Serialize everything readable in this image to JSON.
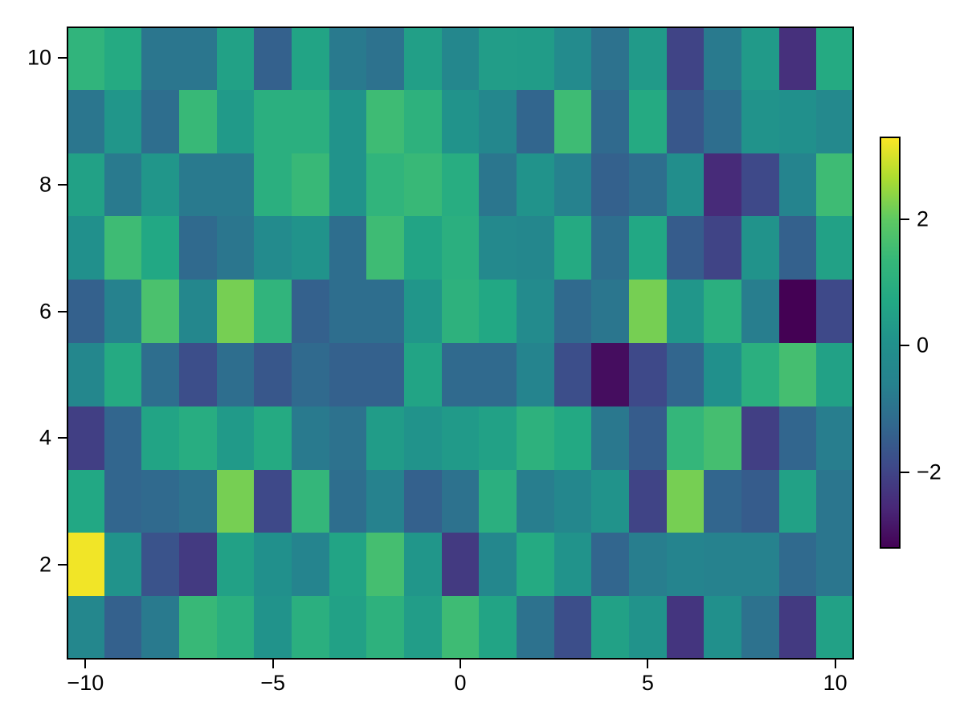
{
  "figure": {
    "background": "#ffffff",
    "frame_color": "#000000",
    "tick_color": "#000000",
    "tick_label_color": "#000000"
  },
  "chart_data": {
    "type": "heatmap",
    "title": "",
    "xlabel": "",
    "ylabel": "",
    "x": [
      -10,
      -9,
      -8,
      -7,
      -6,
      -5,
      -4,
      -3,
      -2,
      -1,
      0,
      1,
      2,
      3,
      4,
      5,
      6,
      7,
      8,
      9,
      10
    ],
    "y": [
      1,
      2,
      3,
      4,
      5,
      6,
      7,
      8,
      9,
      10
    ],
    "z_row_order": "top_to_bottom_y10_to_y1",
    "z": [
      [
        1.2,
        0.8,
        -0.9,
        -0.9,
        0.5,
        -1.4,
        0.6,
        -0.8,
        -1.0,
        0.45,
        -0.4,
        0.4,
        0.35,
        -0.2,
        -1.0,
        0.3,
        -2.0,
        -0.8,
        0.3,
        -2.4,
        0.8
      ],
      [
        -0.9,
        0.2,
        -1.1,
        1.4,
        0.3,
        1.0,
        1.0,
        0.1,
        1.5,
        1.1,
        0.1,
        -0.4,
        -1.3,
        1.5,
        -1.2,
        0.8,
        -1.6,
        -1.1,
        0.1,
        0.0,
        -0.3
      ],
      [
        0.5,
        -0.8,
        0.2,
        -0.8,
        -0.8,
        1.0,
        1.4,
        0.1,
        1.2,
        1.4,
        0.9,
        -0.9,
        0.1,
        -0.6,
        -1.4,
        -1.1,
        -0.1,
        -2.5,
        -1.9,
        -0.5,
        1.5
      ],
      [
        0.0,
        1.5,
        0.7,
        -1.2,
        -0.9,
        -0.2,
        0.1,
        -1.1,
        1.5,
        0.6,
        1.0,
        -0.3,
        -0.4,
        0.8,
        -1.1,
        0.7,
        -1.5,
        -2.0,
        0.1,
        -1.4,
        0.5
      ],
      [
        -1.4,
        -0.6,
        1.7,
        -0.4,
        2.2,
        1.2,
        -1.4,
        -1.1,
        -1.1,
        0.2,
        1.1,
        0.7,
        -0.2,
        -1.2,
        -0.9,
        2.2,
        0.2,
        1.0,
        -0.7,
        -3.2,
        -1.9
      ],
      [
        -0.4,
        0.8,
        -1.1,
        -1.8,
        -1.1,
        -1.6,
        -1.2,
        -1.4,
        -1.4,
        0.6,
        -1.2,
        -1.2,
        -0.5,
        -1.8,
        -3.0,
        -1.9,
        -1.3,
        0.0,
        1.0,
        1.6,
        0.5
      ],
      [
        -2.1,
        -1.3,
        0.6,
        0.9,
        0.3,
        0.8,
        -0.8,
        -1.0,
        0.35,
        0.1,
        0.3,
        0.5,
        1.1,
        0.75,
        -0.85,
        -1.5,
        1.3,
        1.6,
        -2.1,
        -1.3,
        -0.7
      ],
      [
        0.7,
        -1.3,
        -1.2,
        -1.0,
        2.2,
        -1.9,
        1.3,
        -1.1,
        -0.6,
        -1.4,
        -1.0,
        1.0,
        -0.7,
        -0.4,
        0.1,
        -2.0,
        2.2,
        -1.3,
        -1.5,
        0.5,
        -0.9
      ],
      [
        3.2,
        0.1,
        -1.7,
        -2.2,
        0.5,
        0.0,
        -0.5,
        0.6,
        1.6,
        0.2,
        -2.2,
        -0.4,
        0.8,
        0.1,
        -1.3,
        -0.7,
        -0.5,
        -0.6,
        -0.6,
        -1.2,
        -0.9
      ],
      [
        -0.4,
        -1.4,
        -0.8,
        1.4,
        1.0,
        0.1,
        1.0,
        0.5,
        1.1,
        0.4,
        1.5,
        0.6,
        -1.0,
        -1.8,
        0.5,
        0.1,
        -2.3,
        0.0,
        -1.0,
        -2.2,
        0.5
      ]
    ],
    "clim": [
      -3.2,
      3.3
    ],
    "colormap": "viridis",
    "colormap_stops": [
      [
        0.0,
        "#440154"
      ],
      [
        0.1,
        "#482878"
      ],
      [
        0.2,
        "#3e4989"
      ],
      [
        0.3,
        "#31688e"
      ],
      [
        0.4,
        "#26828e"
      ],
      [
        0.5,
        "#21918c"
      ],
      [
        0.6,
        "#22a884"
      ],
      [
        0.7,
        "#35b779"
      ],
      [
        0.8,
        "#5ec962"
      ],
      [
        0.9,
        "#addc30"
      ],
      [
        1.0,
        "#fde725"
      ]
    ],
    "x_ticks": [
      {
        "value": -10,
        "label": "−10"
      },
      {
        "value": -5,
        "label": "−5"
      },
      {
        "value": 0,
        "label": "0"
      },
      {
        "value": 5,
        "label": "5"
      },
      {
        "value": 10,
        "label": "10"
      }
    ],
    "y_ticks": [
      {
        "value": 2,
        "label": "2"
      },
      {
        "value": 4,
        "label": "4"
      },
      {
        "value": 6,
        "label": "6"
      },
      {
        "value": 8,
        "label": "8"
      },
      {
        "value": 10,
        "label": "10"
      }
    ],
    "colorbar_ticks": [
      {
        "value": 2,
        "label": "2"
      },
      {
        "value": 0,
        "label": "0"
      },
      {
        "value": -2,
        "label": "−2"
      }
    ],
    "legend": "colorbar-right",
    "grid": false
  }
}
